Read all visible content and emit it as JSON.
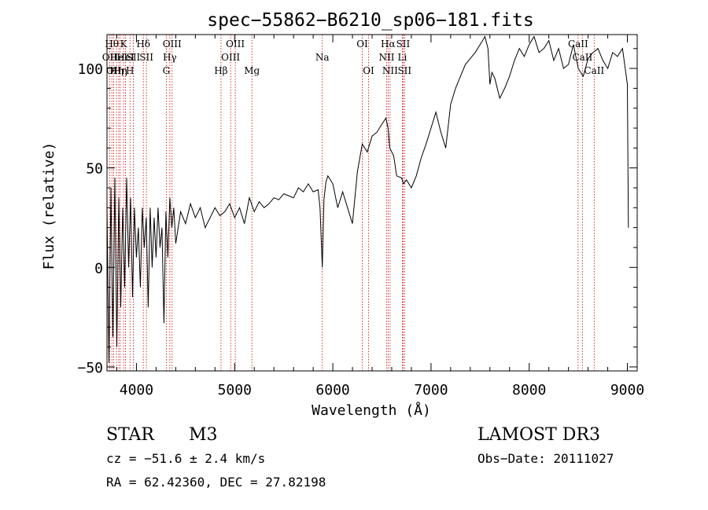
{
  "chart_data": {
    "type": "line",
    "title": "spec−55862−B6210_sp06−181.fits",
    "xlabel": "Wavelength (Å)",
    "ylabel": "Flux (relative)",
    "xlim": [
      3700,
      9100
    ],
    "ylim": [
      -52,
      117
    ],
    "x_ticks": [
      4000,
      5000,
      6000,
      7000,
      8000,
      9000
    ],
    "y_ticks": [
      -50,
      0,
      50,
      100
    ],
    "line_color": "#000000",
    "marker_color": "#cc0000",
    "series": [
      {
        "x": [
          3700,
          3720,
          3740,
          3760,
          3780,
          3800,
          3820,
          3840,
          3860,
          3880,
          3900,
          3920,
          3940,
          3960,
          3980,
          4000,
          4020,
          4040,
          4060,
          4080,
          4100,
          4120,
          4140,
          4160,
          4180,
          4200,
          4220,
          4240,
          4260,
          4280,
          4300,
          4320,
          4340,
          4360,
          4380,
          4400,
          4450,
          4500,
          4550,
          4600,
          4650,
          4700,
          4750,
          4800,
          4850,
          4900,
          4950,
          5000,
          5050,
          5100,
          5150,
          5200,
          5250,
          5300,
          5350,
          5400,
          5450,
          5500,
          5550,
          5600,
          5650,
          5700,
          5750,
          5800,
          5850,
          5870,
          5893,
          5910,
          5930,
          5950,
          6000,
          6050,
          6100,
          6150,
          6200,
          6250,
          6300,
          6350,
          6400,
          6450,
          6500,
          6540,
          6563,
          6580,
          6620,
          6650,
          6700,
          6720,
          6750,
          6800,
          6850,
          6900,
          6950,
          7000,
          7050,
          7100,
          7150,
          7200,
          7250,
          7300,
          7350,
          7400,
          7450,
          7500,
          7550,
          7580,
          7600,
          7620,
          7650,
          7700,
          7750,
          7800,
          7850,
          7900,
          7950,
          8000,
          8050,
          8100,
          8150,
          8200,
          8250,
          8300,
          8350,
          8400,
          8450,
          8500,
          8550,
          8600,
          8650,
          8700,
          8750,
          8800,
          8850,
          8900,
          8950,
          9000,
          9010
        ],
        "y": [
          30,
          -48,
          40,
          -35,
          45,
          -40,
          35,
          -20,
          30,
          -10,
          45,
          0,
          35,
          -15,
          30,
          5,
          20,
          -10,
          30,
          10,
          25,
          -20,
          30,
          0,
          25,
          5,
          30,
          10,
          20,
          -28,
          28,
          5,
          35,
          20,
          30,
          12,
          28,
          22,
          32,
          25,
          30,
          20,
          25,
          30,
          26,
          28,
          32,
          25,
          30,
          22,
          35,
          28,
          33,
          30,
          32,
          35,
          34,
          37,
          36,
          35,
          40,
          38,
          42,
          38,
          39,
          30,
          0,
          34,
          43,
          46,
          42,
          30,
          38,
          30,
          22,
          48,
          62,
          58,
          66,
          68,
          72,
          75,
          70,
          60,
          56,
          46,
          45,
          42,
          44,
          40,
          46,
          55,
          62,
          70,
          78,
          68,
          60,
          82,
          90,
          96,
          102,
          105,
          108,
          112,
          116,
          110,
          92,
          98,
          95,
          85,
          90,
          96,
          104,
          110,
          106,
          112,
          116,
          108,
          110,
          114,
          104,
          110,
          100,
          102,
          112,
          100,
          96,
          105,
          108,
          110,
          104,
          100,
          108,
          106,
          110,
          92,
          20
        ]
      }
    ],
    "line_markers": [
      {
        "x": 3727,
        "label": "OII",
        "row": 2
      },
      {
        "x": 3750,
        "label": "Hθ",
        "row": 1
      },
      {
        "x": 3769,
        "label": "OII",
        "row": 3
      },
      {
        "x": 3797,
        "label": "Hη",
        "row": 3
      },
      {
        "x": 3820,
        "label": "HeI",
        "row": 2
      },
      {
        "x": 3835,
        "label": "Hη",
        "row": 3
      },
      {
        "x": 3869,
        "label": "K",
        "row": 1
      },
      {
        "x": 3889,
        "label": "HeI",
        "row": 2
      },
      {
        "x": 3934,
        "label": "H",
        "row": 3
      },
      {
        "x": 3968,
        "label": "SII",
        "row": 2
      },
      {
        "x": 4070,
        "label": "Hδ",
        "row": 1
      },
      {
        "x": 4102,
        "label": "SII",
        "row": 2
      },
      {
        "x": 4304,
        "label": "G",
        "row": 3
      },
      {
        "x": 4340,
        "label": "Hγ",
        "row": 2
      },
      {
        "x": 4363,
        "label": "OIII",
        "row": 1
      },
      {
        "x": 4861,
        "label": "Hβ",
        "row": 3
      },
      {
        "x": 4959,
        "label": "OIII",
        "row": 2
      },
      {
        "x": 5007,
        "label": "OIII",
        "row": 1
      },
      {
        "x": 5176,
        "label": "Mg",
        "row": 3
      },
      {
        "x": 5893,
        "label": "Na",
        "row": 2
      },
      {
        "x": 6300,
        "label": "OI",
        "row": 1
      },
      {
        "x": 6364,
        "label": "OI",
        "row": 3
      },
      {
        "x": 6548,
        "label": "NII",
        "row": 2
      },
      {
        "x": 6563,
        "label": "Hα",
        "row": 1
      },
      {
        "x": 6583,
        "label": "NII",
        "row": 3
      },
      {
        "x": 6708,
        "label": "Li",
        "row": 2
      },
      {
        "x": 6716,
        "label": "SII",
        "row": 1
      },
      {
        "x": 6731,
        "label": "SII",
        "row": 3
      },
      {
        "x": 8498,
        "label": "CaII",
        "row": 1
      },
      {
        "x": 8542,
        "label": "CaII",
        "row": 2
      },
      {
        "x": 8662,
        "label": "CaII",
        "row": 3
      }
    ]
  },
  "info": {
    "object_class": "STAR",
    "subclass": "M3",
    "survey": "LAMOST DR3",
    "redshift_line": "cz = −51.6 ± 2.4 km/s",
    "obs_date_line": "Obs−Date: 20111027",
    "coords_line": "RA =  62.42360, DEC =  27.82198"
  }
}
